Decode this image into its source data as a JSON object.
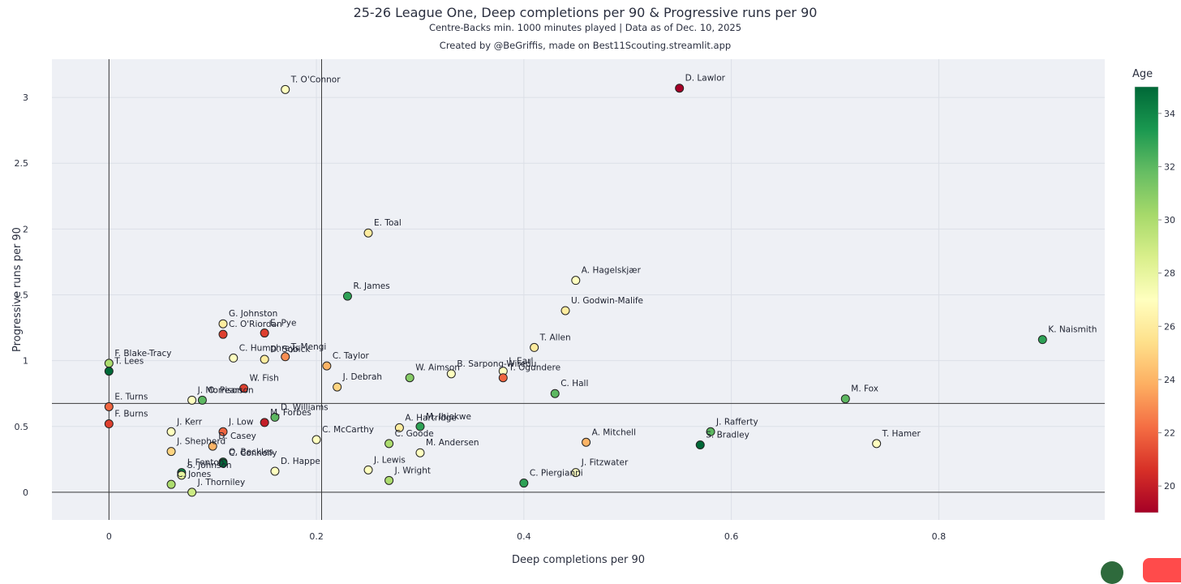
{
  "header": {
    "title": "25-26 League One, Deep completions per 90 & Progressive runs per 90",
    "subtitle": "Centre-Backs min. 1000 minutes played | Data as of Dec. 10, 2025",
    "credit": "Created by @BeGriffis, made on Best11Scouting.streamlit.app"
  },
  "colorbar": {
    "title": "Age",
    "min": 19,
    "max": 35,
    "ticks": [
      20,
      22,
      24,
      26,
      28,
      30,
      32,
      34
    ],
    "colors": [
      "#a50026",
      "#d73027",
      "#f46d43",
      "#fdae61",
      "#fee08b",
      "#ffffbf",
      "#d9ef8b",
      "#a6d96a",
      "#66bd63",
      "#1a9850",
      "#006837"
    ]
  },
  "chart_data": {
    "type": "scatter",
    "title": "25-26 League One, Deep completions per 90 & Progressive runs per 90",
    "xlabel": "Deep completions per 90",
    "ylabel": "Progressive runs per 90",
    "xlim": [
      -0.055,
      0.96
    ],
    "ylim": [
      -0.21,
      3.29
    ],
    "xticks": [
      0,
      0.2,
      0.4,
      0.6,
      0.8
    ],
    "xtick_labels": [
      "0",
      "0.2",
      "0.4",
      "0.6",
      "0.8"
    ],
    "yticks": [
      0,
      0.5,
      1,
      1.5,
      2,
      2.5,
      3
    ],
    "ytick_labels": [
      "0",
      "0.5",
      "1",
      "1.5",
      "2",
      "2.5",
      "3"
    ],
    "grid": true,
    "reference_lines": {
      "x": [
        0,
        0.205
      ],
      "y": [
        0,
        0.675
      ]
    },
    "color_by": "Age",
    "points": [
      {
        "name": "T. O'Connor",
        "x": 0.17,
        "y": 3.06,
        "age": 27
      },
      {
        "name": "D. Lawlor",
        "x": 0.55,
        "y": 3.07,
        "age": 19
      },
      {
        "name": "E. Toal",
        "x": 0.25,
        "y": 1.97,
        "age": 26
      },
      {
        "name": "R. James",
        "x": 0.23,
        "y": 1.49,
        "age": 33
      },
      {
        "name": "A. Hagelskjær",
        "x": 0.45,
        "y": 1.61,
        "age": 27
      },
      {
        "name": "U. Godwin-Malife",
        "x": 0.44,
        "y": 1.38,
        "age": 26
      },
      {
        "name": "K. Naismith",
        "x": 0.9,
        "y": 1.16,
        "age": 33
      },
      {
        "name": "G. Johnston",
        "x": 0.11,
        "y": 1.28,
        "age": 26
      },
      {
        "name": "C. O'Riordan",
        "x": 0.11,
        "y": 1.2,
        "age": 21
      },
      {
        "name": "E. Pye",
        "x": 0.15,
        "y": 1.21,
        "age": 21
      },
      {
        "name": "T. Allen",
        "x": 0.41,
        "y": 1.1,
        "age": 26
      },
      {
        "name": "F. Blake-Tracy",
        "x": 0.0,
        "y": 0.98,
        "age": 30
      },
      {
        "name": "T. Lees",
        "x": 0.0,
        "y": 0.92,
        "age": 35
      },
      {
        "name": "C. Humphreys",
        "x": 0.12,
        "y": 1.02,
        "age": 27
      },
      {
        "name": "T. Mengi",
        "x": 0.17,
        "y": 1.03,
        "age": 23
      },
      {
        "name": "D. Sobick",
        "x": 0.15,
        "y": 1.01,
        "age": 26
      },
      {
        "name": "C. Taylor",
        "x": 0.21,
        "y": 0.96,
        "age": 24
      },
      {
        "name": "J. Earl",
        "x": 0.38,
        "y": 0.92,
        "age": 27
      },
      {
        "name": "T. Ogundere",
        "x": 0.38,
        "y": 0.87,
        "age": 22
      },
      {
        "name": "B. Sarpong-Wiredu",
        "x": 0.33,
        "y": 0.9,
        "age": 27
      },
      {
        "name": "W. Aimson",
        "x": 0.29,
        "y": 0.87,
        "age": 31
      },
      {
        "name": "J. Debrah",
        "x": 0.22,
        "y": 0.8,
        "age": 25
      },
      {
        "name": "W. Fish",
        "x": 0.13,
        "y": 0.79,
        "age": 21
      },
      {
        "name": "J. Morrison",
        "x": 0.08,
        "y": 0.7,
        "age": 27
      },
      {
        "name": "O. Pearson",
        "x": 0.09,
        "y": 0.7,
        "age": 32
      },
      {
        "name": "C. Hall",
        "x": 0.43,
        "y": 0.75,
        "age": 32
      },
      {
        "name": "M. Fox",
        "x": 0.71,
        "y": 0.71,
        "age": 32
      },
      {
        "name": "E. Turns",
        "x": 0.0,
        "y": 0.65,
        "age": 22
      },
      {
        "name": "F. Burns",
        "x": 0.0,
        "y": 0.52,
        "age": 21
      },
      {
        "name": "D. Williams",
        "x": 0.16,
        "y": 0.57,
        "age": 32
      },
      {
        "name": "M. Forbes",
        "x": 0.15,
        "y": 0.53,
        "age": 20
      },
      {
        "name": "J. Kerr",
        "x": 0.06,
        "y": 0.46,
        "age": 27
      },
      {
        "name": "J. Low",
        "x": 0.11,
        "y": 0.46,
        "age": 22
      },
      {
        "name": "C. McCarthy",
        "x": 0.2,
        "y": 0.4,
        "age": 27
      },
      {
        "name": "A. Hartridge",
        "x": 0.28,
        "y": 0.49,
        "age": 26
      },
      {
        "name": "M. Ihiekwe",
        "x": 0.3,
        "y": 0.5,
        "age": 33
      },
      {
        "name": "J. Rafferty",
        "x": 0.58,
        "y": 0.46,
        "age": 32
      },
      {
        "name": "S. Bradley",
        "x": 0.57,
        "y": 0.36,
        "age": 35
      },
      {
        "name": "T. Hamer",
        "x": 0.74,
        "y": 0.37,
        "age": 27
      },
      {
        "name": "A. Mitchell",
        "x": 0.46,
        "y": 0.38,
        "age": 24
      },
      {
        "name": "D. Casey",
        "x": 0.1,
        "y": 0.35,
        "age": 24
      },
      {
        "name": "J. Shepherd",
        "x": 0.06,
        "y": 0.31,
        "age": 25
      },
      {
        "name": "C. Goode",
        "x": 0.27,
        "y": 0.37,
        "age": 30
      },
      {
        "name": "M. Andersen",
        "x": 0.3,
        "y": 0.3,
        "age": 27
      },
      {
        "name": "O. Beckles",
        "x": 0.11,
        "y": 0.23,
        "age": 34
      },
      {
        "name": "C. Connolly",
        "x": 0.11,
        "y": 0.22,
        "age": 35
      },
      {
        "name": "J. Fenton",
        "x": 0.07,
        "y": 0.15,
        "age": 34
      },
      {
        "name": "S. Johnson",
        "x": 0.07,
        "y": 0.13,
        "age": 28
      },
      {
        "name": "D. Happe",
        "x": 0.16,
        "y": 0.16,
        "age": 27
      },
      {
        "name": "J. Lewis",
        "x": 0.25,
        "y": 0.17,
        "age": 27
      },
      {
        "name": "J. Wright",
        "x": 0.27,
        "y": 0.09,
        "age": 30
      },
      {
        "name": "J. Fitzwater",
        "x": 0.45,
        "y": 0.15,
        "age": 27
      },
      {
        "name": "C. Piergianni",
        "x": 0.4,
        "y": 0.07,
        "age": 33
      },
      {
        "name": "J. Thorniley",
        "x": 0.08,
        "y": 0.0,
        "age": 29
      },
      {
        "name": "C. Jones",
        "x": 0.06,
        "y": 0.06,
        "age": 30
      }
    ]
  }
}
